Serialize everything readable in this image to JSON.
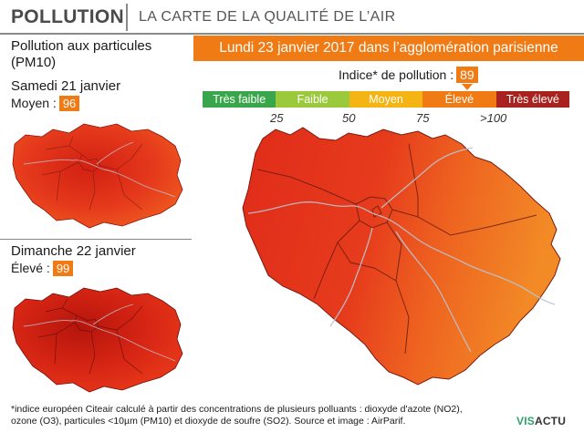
{
  "header": {
    "title": "POLLUTION",
    "subtitle": "LA CARTE DE LA QUALITÉ DE L’AIR"
  },
  "banner": "Lundi 23 janvier 2017 dans l’agglomération parisienne",
  "left": {
    "heading_line1": "Pollution aux particules",
    "heading_line2": "(PM10)",
    "day1": {
      "label": "Samedi 21 janvier",
      "level": "Moyen",
      "index": 96
    },
    "day2": {
      "label": "Dimanche 22 janvier",
      "level": "Élevé",
      "index": 99
    }
  },
  "index": {
    "label": "Indice* de pollution",
    "value": 89
  },
  "legend": [
    {
      "label": "Très faible",
      "color": "#3aa64c"
    },
    {
      "label": "Faible",
      "color": "#9ac93c"
    },
    {
      "label": "Moyen",
      "color": "#f3b414"
    },
    {
      "label": "Élevé",
      "color": "#f07a14"
    },
    {
      "label": "Très élevé",
      "color": "#a8231f"
    }
  ],
  "ticks": [
    "25",
    "50",
    "75",
    ">100"
  ],
  "colors": {
    "orange": "#f07a14",
    "red": "#e5301c",
    "dark_red": "#c2180e"
  },
  "footer": {
    "line1": "*indice européen Citeair calculé à partir des concentrations de plusieurs polluants : dioxyde d'azote (NO2),",
    "line2": "ozone (O3), particules <10µm (PM10) et dioxyde de soufre (SO2).   Source et image : AirParif."
  },
  "logo": {
    "part1": "VIS",
    "part2": "ACTU"
  }
}
